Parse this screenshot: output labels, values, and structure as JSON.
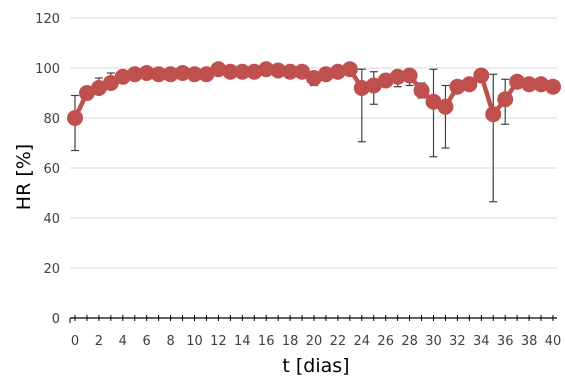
{
  "chart_data": {
    "type": "line",
    "xlabel": "t [dias]",
    "ylabel": "HR  [%]",
    "xlim": [
      0,
      40
    ],
    "ylim": [
      0,
      120
    ],
    "x_ticks": [
      0,
      2,
      4,
      6,
      8,
      10,
      12,
      14,
      16,
      18,
      20,
      22,
      24,
      26,
      28,
      30,
      32,
      34,
      36,
      38,
      40
    ],
    "y_ticks": [
      0,
      20,
      40,
      60,
      80,
      100,
      120
    ],
    "grid": "horizontal",
    "legend": "none",
    "series": [
      {
        "color": "#c0504d",
        "marker": "circle",
        "error_bar_color": "#404040",
        "x": [
          0,
          1,
          2,
          3,
          4,
          5,
          6,
          7,
          8,
          9,
          10,
          11,
          12,
          13,
          14,
          15,
          16,
          17,
          18,
          19,
          20,
          21,
          22,
          23,
          24,
          25,
          26,
          27,
          28,
          29,
          30,
          31,
          32,
          33,
          34,
          35,
          36,
          37,
          38,
          39,
          40
        ],
        "values": [
          80,
          90,
          92,
          94,
          96.5,
          97.5,
          98,
          97.5,
          97.5,
          98,
          97.5,
          97.5,
          99.5,
          98.5,
          98.5,
          98.5,
          99.5,
          99,
          98.5,
          98.5,
          96,
          97.5,
          98.5,
          99.5,
          92,
          93,
          95,
          96.5,
          97,
          91,
          86.5,
          84.5,
          92.5,
          93.5,
          97,
          81.5,
          87.5,
          94.5,
          93.5,
          93.5,
          92.5
        ],
        "err_low": [
          67,
          88,
          90,
          93,
          95,
          96,
          97,
          96,
          96,
          97,
          96,
          96,
          98,
          97,
          97,
          97,
          98,
          98,
          97,
          97,
          93,
          96,
          97,
          98,
          70.5,
          85.5,
          93,
          92.5,
          93,
          88,
          64.5,
          68,
          91,
          91,
          95,
          46.5,
          77.5,
          93,
          92,
          92,
          91
        ],
        "err_high": [
          89,
          92,
          96,
          98,
          98,
          99,
          99,
          99,
          99,
          99,
          99,
          99,
          101,
          100,
          100,
          100,
          101,
          100,
          100,
          100,
          98,
          99,
          100,
          101,
          99.5,
          98.5,
          97,
          98,
          99,
          94,
          99.5,
          93,
          94,
          95.5,
          99,
          97.5,
          95.5,
          96,
          95,
          95,
          94
        ]
      }
    ]
  }
}
